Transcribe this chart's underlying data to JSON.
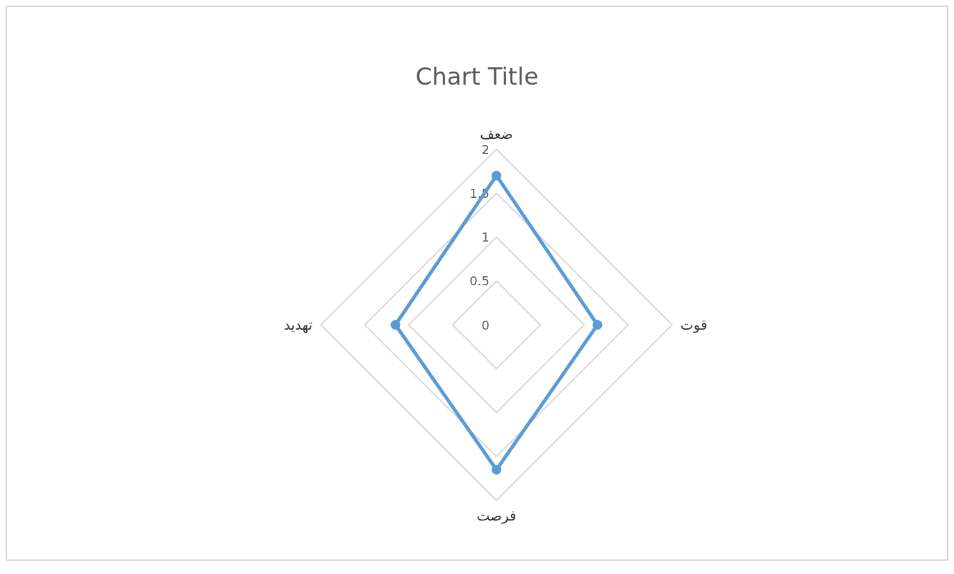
{
  "chart_data": {
    "type": "radar",
    "title": "Chart Title",
    "categories": [
      "ضعف",
      "قوت",
      "فرصت",
      "تهدید"
    ],
    "series": [
      {
        "color": "#5b9bd5",
        "values": [
          1.7,
          1.15,
          1.65,
          1.15
        ]
      }
    ],
    "ylim": [
      0,
      2
    ],
    "yticks": [
      0,
      0.5,
      1,
      1.5,
      2
    ],
    "grid": true,
    "marker": "circle",
    "line_style": "solid"
  }
}
